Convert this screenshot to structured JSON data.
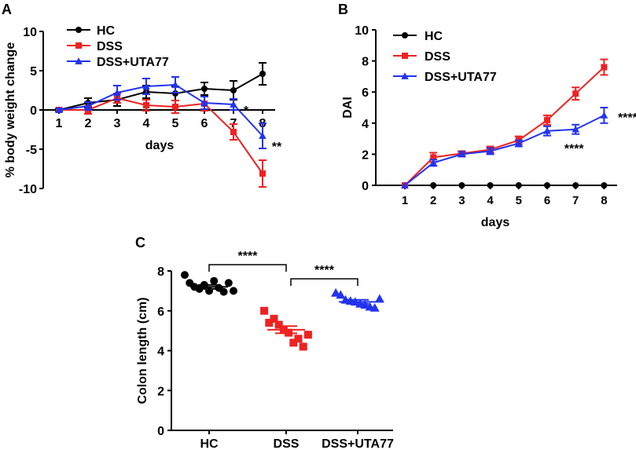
{
  "colors": {
    "HC": "#000000",
    "DSS": "#ee2222",
    "DSS+UTA77": "#2233ee",
    "axis": "#000000"
  },
  "chart_data": [
    {
      "panel": "A",
      "type": "line",
      "xlabel": "days",
      "ylabel": "% body weight change",
      "x": [
        1,
        2,
        3,
        4,
        5,
        6,
        7,
        8
      ],
      "xticks": [
        "1",
        "2",
        "3",
        "4",
        "5",
        "6",
        "7",
        "8"
      ],
      "ylim": [
        -10,
        10
      ],
      "yticks": [
        "10",
        "5",
        "0",
        "-5",
        "-10"
      ],
      "legend_position": "top-left",
      "series": [
        {
          "name": "HC",
          "marker": "circle",
          "values": [
            0,
            0.9,
            1.3,
            2.3,
            2.1,
            2.7,
            2.5,
            4.6
          ],
          "err": [
            0.2,
            0.6,
            0.8,
            0.8,
            0.9,
            0.8,
            1.2,
            1.4
          ]
        },
        {
          "name": "DSS",
          "marker": "square",
          "values": [
            0,
            0,
            1.5,
            0.6,
            0.4,
            0.8,
            -2.8,
            -8.1
          ],
          "err": [
            0.2,
            0.5,
            0.6,
            0.7,
            0.8,
            0.9,
            1.0,
            1.7
          ]
        },
        {
          "name": "DSS+UTA77",
          "marker": "triangle",
          "values": [
            0,
            0.5,
            2.2,
            3.0,
            3.2,
            0.9,
            0.7,
            -3.3
          ],
          "err": [
            0.2,
            0.5,
            0.9,
            1.0,
            1.0,
            0.8,
            0.7,
            1.6
          ]
        }
      ],
      "annotations": [
        {
          "x": 7,
          "text": "*"
        },
        {
          "x": 8,
          "text": "**"
        }
      ]
    },
    {
      "panel": "B",
      "type": "line",
      "xlabel": "days",
      "ylabel": "DAI",
      "x": [
        1,
        2,
        3,
        4,
        5,
        6,
        7,
        8
      ],
      "xticks": [
        "1",
        "2",
        "3",
        "4",
        "5",
        "6",
        "7",
        "8"
      ],
      "ylim": [
        0,
        10
      ],
      "yticks": [
        "10",
        "8",
        "6",
        "4",
        "2",
        "0"
      ],
      "legend_position": "top-left",
      "series": [
        {
          "name": "HC",
          "marker": "circle",
          "values": [
            0,
            0,
            0,
            0,
            0,
            0,
            0,
            0
          ],
          "err": [
            0,
            0,
            0,
            0,
            0,
            0,
            0,
            0
          ]
        },
        {
          "name": "DSS",
          "marker": "square",
          "values": [
            0,
            1.8,
            2.05,
            2.3,
            2.9,
            4.2,
            5.9,
            7.6
          ],
          "err": [
            0,
            0.3,
            0.15,
            0.2,
            0.25,
            0.3,
            0.4,
            0.5
          ]
        },
        {
          "name": "DSS+UTA77",
          "marker": "triangle",
          "values": [
            0,
            1.45,
            2.0,
            2.2,
            2.7,
            3.5,
            3.6,
            4.5
          ],
          "err": [
            0,
            0.2,
            0.15,
            0.2,
            0.2,
            0.3,
            0.3,
            0.5
          ]
        }
      ],
      "annotations": [
        {
          "x": 7,
          "text": "****"
        },
        {
          "x": 8,
          "text": "****"
        }
      ]
    },
    {
      "panel": "C",
      "type": "scatter",
      "xlabel": "",
      "ylabel": "Colon length (cm)",
      "categories": [
        "HC",
        "DSS",
        "DSS+UTA77"
      ],
      "ylim": [
        0,
        8
      ],
      "yticks": [
        "8",
        "6",
        "4",
        "2",
        "0"
      ],
      "groups": [
        {
          "name": "HC",
          "marker": "circle",
          "mean": 7.2,
          "sem": 0.1,
          "points": [
            7.8,
            7.4,
            7.2,
            7.1,
            7.3,
            7.0,
            7.5,
            7.15,
            6.95,
            7.4,
            7.0
          ]
        },
        {
          "name": "DSS",
          "marker": "square",
          "mean": 5.05,
          "sem": 0.18,
          "points": [
            6.0,
            5.4,
            5.6,
            5.3,
            5.05,
            4.9,
            4.4,
            4.6,
            4.2,
            4.8
          ]
        },
        {
          "name": "DSS+UTA77",
          "marker": "triangle",
          "mean": 6.45,
          "sem": 0.1,
          "points": [
            6.9,
            6.8,
            6.55,
            6.5,
            6.45,
            6.35,
            6.3,
            6.2,
            6.15,
            6.6
          ]
        }
      ],
      "significance": [
        {
          "from": "HC",
          "to": "DSS",
          "text": "****"
        },
        {
          "from": "DSS",
          "to": "DSS+UTA77",
          "text": "****"
        }
      ]
    }
  ]
}
